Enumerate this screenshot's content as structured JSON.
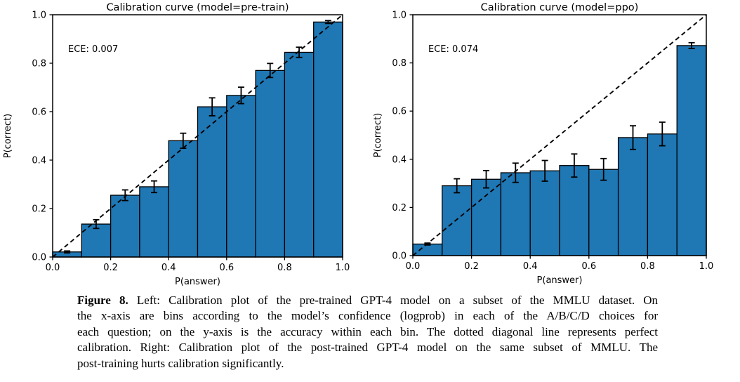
{
  "page": {
    "background": "#ffffff",
    "text_color": "#000000"
  },
  "chart_data": [
    {
      "type": "bar",
      "title": "Calibration curve (model=pre-train)",
      "annotation": "ECE: 0.007",
      "xlabel": "P(answer)",
      "ylabel": "P(correct)",
      "xlim": [
        0.0,
        1.0
      ],
      "ylim": [
        0.0,
        1.0
      ],
      "xtick_labels": [
        "0.0",
        "0.2",
        "0.4",
        "0.6",
        "0.8",
        "1.0"
      ],
      "ytick_labels": [
        "0.0",
        "0.2",
        "0.4",
        "0.6",
        "0.8",
        "1.0"
      ],
      "grid": false,
      "legend": "none",
      "bin_edges": [
        0.0,
        0.1,
        0.2,
        0.3,
        0.4,
        0.5,
        0.6,
        0.7,
        0.8,
        0.9,
        1.0
      ],
      "bin_centers": [
        0.05,
        0.15,
        0.25,
        0.35,
        0.45,
        0.55,
        0.65,
        0.75,
        0.85,
        0.95
      ],
      "values": [
        0.021,
        0.136,
        0.255,
        0.29,
        0.48,
        0.62,
        0.667,
        0.77,
        0.845,
        0.97
      ],
      "errors": [
        0.004,
        0.018,
        0.022,
        0.024,
        0.031,
        0.037,
        0.034,
        0.029,
        0.021,
        0.006
      ],
      "diagonal_line": "dashed y=x perfect calibration",
      "bar_color": "#1f77b4",
      "bar_edge_color": "#000000",
      "error_color": "#000000"
    },
    {
      "type": "bar",
      "title": "Calibration curve (model=ppo)",
      "annotation": "ECE: 0.074",
      "xlabel": "P(answer)",
      "ylabel": "P(correct)",
      "xlim": [
        0.0,
        1.0
      ],
      "ylim": [
        0.0,
        1.0
      ],
      "xtick_labels": [
        "0.0",
        "0.2",
        "0.4",
        "0.6",
        "0.8",
        "1.0"
      ],
      "ytick_labels": [
        "0.0",
        "0.2",
        "0.4",
        "0.6",
        "0.8",
        "1.0"
      ],
      "grid": false,
      "legend": "none",
      "bin_edges": [
        0.0,
        0.1,
        0.2,
        0.3,
        0.4,
        0.5,
        0.6,
        0.7,
        0.8,
        0.9,
        1.0
      ],
      "bin_centers": [
        0.05,
        0.15,
        0.25,
        0.35,
        0.45,
        0.55,
        0.65,
        0.75,
        0.85,
        0.95
      ],
      "values": [
        0.048,
        0.29,
        0.317,
        0.344,
        0.352,
        0.374,
        0.358,
        0.49,
        0.505,
        0.872
      ],
      "errors": [
        0.004,
        0.029,
        0.036,
        0.04,
        0.043,
        0.048,
        0.045,
        0.049,
        0.049,
        0.012
      ],
      "diagonal_line": "dashed y=x perfect calibration",
      "bar_color": "#1f77b4",
      "bar_edge_color": "#000000",
      "error_color": "#000000"
    }
  ],
  "caption": {
    "label": "Figure 8.",
    "lines": [
      "Left: Calibration plot of the pre-trained GPT-4 model on a subset of the MMLU dataset. On",
      "the x-axis are bins according to the model’s confidence (logprob) in each of the A/B/C/D choices for",
      "each question; on the y-axis is the accuracy within each bin. The dotted diagonal line represents perfect",
      "calibration. Right: Calibration plot of the post-trained GPT-4 model on the same subset of MMLU. The",
      "post-training hurts calibration significantly."
    ]
  }
}
